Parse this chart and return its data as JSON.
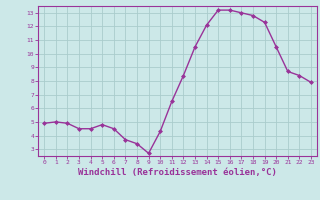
{
  "x": [
    0,
    1,
    2,
    3,
    4,
    5,
    6,
    7,
    8,
    9,
    10,
    11,
    12,
    13,
    14,
    15,
    16,
    17,
    18,
    19,
    20,
    21,
    22,
    23
  ],
  "y": [
    4.9,
    5.0,
    4.9,
    4.5,
    4.5,
    4.8,
    4.5,
    3.7,
    3.4,
    2.7,
    4.3,
    6.5,
    8.4,
    10.5,
    12.1,
    13.2,
    13.2,
    13.0,
    12.8,
    12.3,
    10.5,
    8.7,
    8.4,
    7.9
  ],
  "line_color": "#993399",
  "marker": "D",
  "marker_size": 2.0,
  "linewidth": 1.0,
  "xlabel": "Windchill (Refroidissement éolien,°C)",
  "xlabel_fontsize": 6.5,
  "bg_color": "#cce8e8",
  "grid_color": "#aacccc",
  "tick_color": "#993399",
  "tick_label_color": "#993399",
  "spine_color": "#993399",
  "ylim": [
    2.5,
    13.5
  ],
  "xlim": [
    -0.5,
    23.5
  ],
  "yticks": [
    3,
    4,
    5,
    6,
    7,
    8,
    9,
    10,
    11,
    12,
    13
  ],
  "xticks": [
    0,
    1,
    2,
    3,
    4,
    5,
    6,
    7,
    8,
    9,
    10,
    11,
    12,
    13,
    14,
    15,
    16,
    17,
    18,
    19,
    20,
    21,
    22,
    23
  ]
}
